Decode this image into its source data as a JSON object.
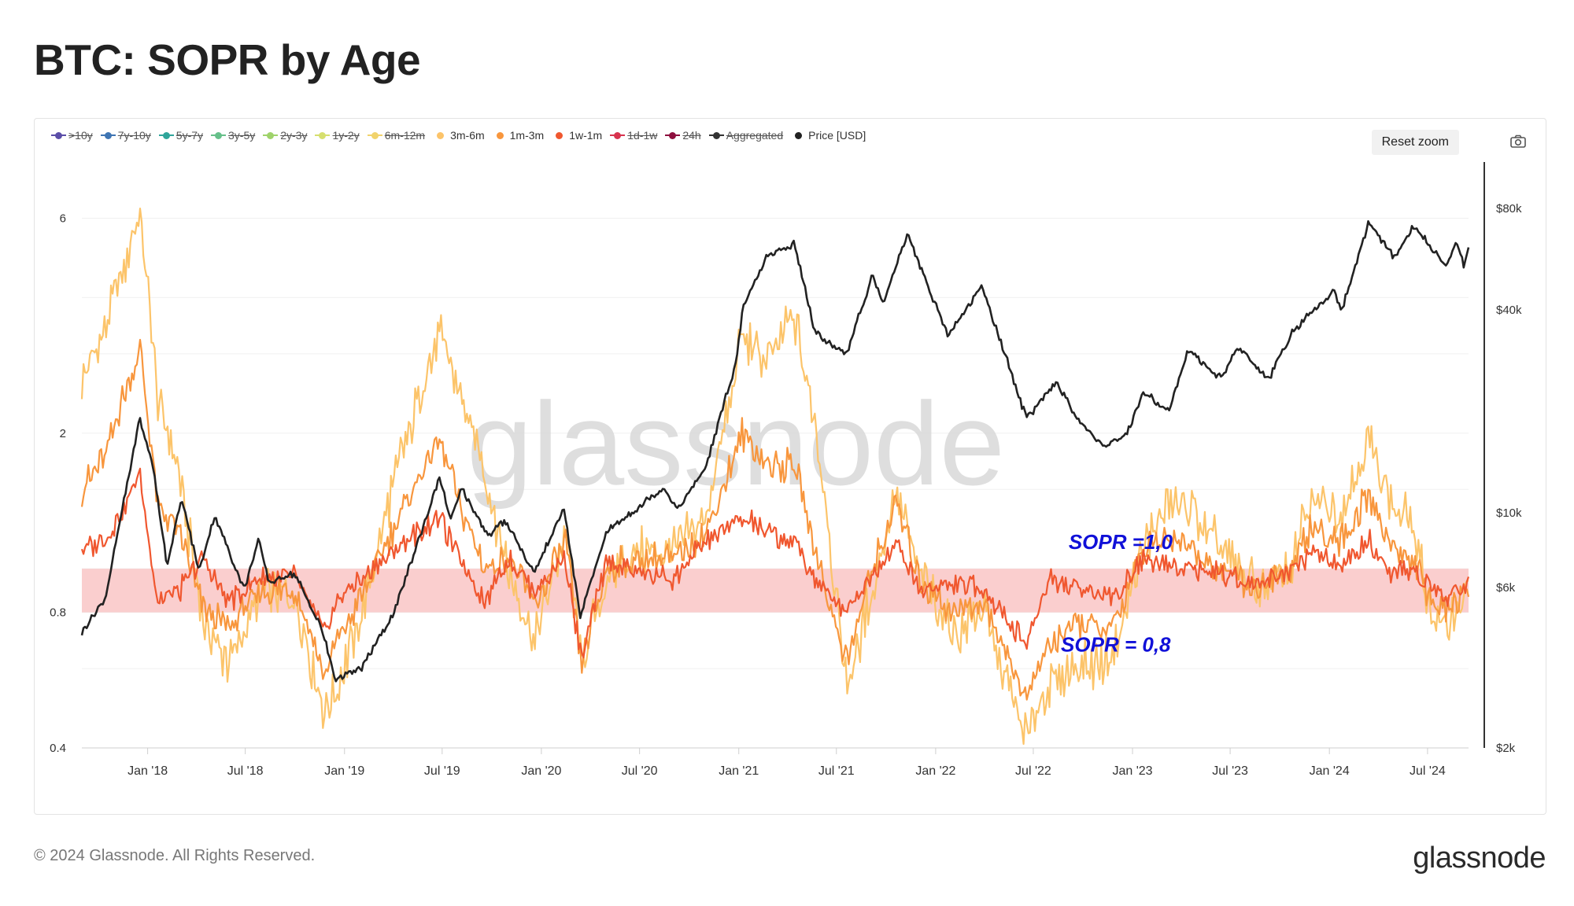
{
  "page": {
    "title": "BTC: SOPR by Age",
    "reset_zoom_label": "Reset zoom",
    "camera_icon": "camera-icon",
    "copyright": "© 2024 Glassnode. All Rights Reserved.",
    "logo_text": "glassnode",
    "watermark": "glassnode"
  },
  "legend": [
    {
      "label": ">10y",
      "color": "#5b4ea8",
      "hidden": true
    },
    {
      "label": "7y-10y",
      "color": "#3f75b3",
      "hidden": true
    },
    {
      "label": "5y-7y",
      "color": "#2fa59a",
      "hidden": true
    },
    {
      "label": "3y-5y",
      "color": "#66c08a",
      "hidden": true
    },
    {
      "label": "2y-3y",
      "color": "#9fd36b",
      "hidden": true
    },
    {
      "label": "1y-2y",
      "color": "#d6df6e",
      "hidden": true
    },
    {
      "label": "6m-12m",
      "color": "#f1d36c",
      "hidden": true
    },
    {
      "label": "3m-6m",
      "color": "#fcc46a",
      "hidden": false
    },
    {
      "label": "1m-3m",
      "color": "#f8963d",
      "hidden": false
    },
    {
      "label": "1w-1m",
      "color": "#f0572f",
      "hidden": false
    },
    {
      "label": "1d-1w",
      "color": "#d8334e",
      "hidden": true
    },
    {
      "label": "24h",
      "color": "#8e0f3e",
      "hidden": true
    },
    {
      "label": "Aggregated",
      "color": "#333333",
      "hidden": true
    },
    {
      "label": "Price [USD]",
      "color": "#222222",
      "hidden": false
    }
  ],
  "annotations": {
    "sopr_upper": "SOPR =1,0",
    "sopr_lower": "SOPR = 0,8",
    "annotation_color": "#1010d8",
    "band_color": "#f9c9c9"
  },
  "chart_data": {
    "type": "line",
    "title": "BTC: SOPR by Age",
    "x_tick_labels": [
      "Jan '18",
      "Jul '18",
      "Jan '19",
      "Jul '19",
      "Jan '20",
      "Jul '20",
      "Jan '21",
      "Jul '21",
      "Jan '22",
      "Jul '22",
      "Jan '23",
      "Jul '23",
      "Jan '24",
      "Jul '24"
    ],
    "x_range": [
      "2017-09-01",
      "2024-09-15"
    ],
    "y_left": {
      "scale": "log",
      "tick_labels": [
        "0.4",
        "0.8",
        "2",
        "6"
      ],
      "tick_values": [
        0.4,
        0.8,
        2,
        6
      ],
      "range": [
        0.4,
        8.0
      ]
    },
    "y_right": {
      "scale": "log",
      "tick_labels": [
        "$2k",
        "$6k",
        "$10k",
        "$40k",
        "$80k"
      ],
      "tick_values": [
        2000,
        6000,
        10000,
        40000,
        80000
      ],
      "range": [
        2000,
        110000
      ]
    },
    "band": {
      "from": 0.8,
      "to": 1.0
    },
    "series": [
      {
        "name": "3m-6m",
        "color": "#fcc46a",
        "axis": "left",
        "points": [
          [
            "2017-09-01",
            2.6
          ],
          [
            "2017-10-15",
            3.4
          ],
          [
            "2017-12-17",
            6.2
          ],
          [
            "2018-01-20",
            2.4
          ],
          [
            "2018-03-01",
            1.6
          ],
          [
            "2018-04-15",
            0.75
          ],
          [
            "2018-06-01",
            0.62
          ],
          [
            "2018-08-01",
            0.9
          ],
          [
            "2018-10-01",
            0.85
          ],
          [
            "2018-11-25",
            0.48
          ],
          [
            "2018-12-20",
            0.55
          ],
          [
            "2019-02-15",
            0.9
          ],
          [
            "2019-04-10",
            1.7
          ],
          [
            "2019-06-26",
            3.3
          ],
          [
            "2019-08-01",
            2.5
          ],
          [
            "2019-09-20",
            1.6
          ],
          [
            "2019-11-01",
            1.0
          ],
          [
            "2019-12-20",
            0.68
          ],
          [
            "2020-02-15",
            1.2
          ],
          [
            "2020-03-15",
            0.62
          ],
          [
            "2020-05-01",
            0.95
          ],
          [
            "2020-07-01",
            1.1
          ],
          [
            "2020-09-01",
            1.1
          ],
          [
            "2020-11-01",
            1.3
          ],
          [
            "2021-01-08",
            3.3
          ],
          [
            "2021-02-20",
            2.9
          ],
          [
            "2021-04-15",
            3.6
          ],
          [
            "2021-06-01",
            1.8
          ],
          [
            "2021-07-20",
            0.55
          ],
          [
            "2021-09-01",
            0.85
          ],
          [
            "2021-10-20",
            1.5
          ],
          [
            "2021-12-01",
            1.0
          ],
          [
            "2022-02-01",
            0.72
          ],
          [
            "2022-04-01",
            0.8
          ],
          [
            "2022-06-18",
            0.42
          ],
          [
            "2022-08-01",
            0.55
          ],
          [
            "2022-09-15",
            0.6
          ],
          [
            "2022-11-21",
            0.62
          ],
          [
            "2023-01-20",
            1.1
          ],
          [
            "2023-03-15",
            1.45
          ],
          [
            "2023-04-20",
            1.35
          ],
          [
            "2023-06-15",
            1.1
          ],
          [
            "2023-08-20",
            0.9
          ],
          [
            "2023-10-20",
            1.0
          ],
          [
            "2023-12-01",
            1.45
          ],
          [
            "2024-01-20",
            1.3
          ],
          [
            "2024-03-14",
            1.95
          ],
          [
            "2024-04-20",
            1.45
          ],
          [
            "2024-06-01",
            1.25
          ],
          [
            "2024-07-10",
            0.8
          ],
          [
            "2024-08-05",
            0.75
          ],
          [
            "2024-09-15",
            0.9
          ]
        ]
      },
      {
        "name": "1m-3m",
        "color": "#f8963d",
        "axis": "left",
        "points": [
          [
            "2017-09-01",
            1.5
          ],
          [
            "2017-10-15",
            1.8
          ],
          [
            "2017-12-17",
            3.1
          ],
          [
            "2018-01-20",
            1.4
          ],
          [
            "2018-03-01",
            1.2
          ],
          [
            "2018-04-15",
            0.8
          ],
          [
            "2018-06-01",
            0.75
          ],
          [
            "2018-08-01",
            0.9
          ],
          [
            "2018-10-01",
            0.9
          ],
          [
            "2018-11-25",
            0.58
          ],
          [
            "2018-12-20",
            0.7
          ],
          [
            "2019-02-15",
            0.92
          ],
          [
            "2019-04-10",
            1.3
          ],
          [
            "2019-06-26",
            1.95
          ],
          [
            "2019-08-01",
            1.4
          ],
          [
            "2019-09-20",
            1.0
          ],
          [
            "2019-11-01",
            1.05
          ],
          [
            "2019-12-20",
            0.82
          ],
          [
            "2020-02-15",
            1.15
          ],
          [
            "2020-03-15",
            0.6
          ],
          [
            "2020-05-01",
            1.0
          ],
          [
            "2020-07-01",
            1.05
          ],
          [
            "2020-09-01",
            1.05
          ],
          [
            "2020-11-01",
            1.2
          ],
          [
            "2021-01-08",
            2.0
          ],
          [
            "2021-02-20",
            1.7
          ],
          [
            "2021-04-15",
            1.7
          ],
          [
            "2021-06-01",
            1.0
          ],
          [
            "2021-07-20",
            0.62
          ],
          [
            "2021-09-01",
            0.95
          ],
          [
            "2021-10-20",
            1.4
          ],
          [
            "2021-12-01",
            0.95
          ],
          [
            "2022-02-01",
            0.8
          ],
          [
            "2022-04-01",
            0.85
          ],
          [
            "2022-06-18",
            0.52
          ],
          [
            "2022-08-01",
            0.68
          ],
          [
            "2022-09-15",
            0.75
          ],
          [
            "2022-11-21",
            0.72
          ],
          [
            "2023-01-20",
            1.08
          ],
          [
            "2023-03-15",
            1.2
          ],
          [
            "2023-04-20",
            1.1
          ],
          [
            "2023-06-15",
            1.0
          ],
          [
            "2023-08-20",
            0.9
          ],
          [
            "2023-10-20",
            0.98
          ],
          [
            "2023-12-01",
            1.25
          ],
          [
            "2024-01-20",
            1.15
          ],
          [
            "2024-03-14",
            1.45
          ],
          [
            "2024-04-20",
            1.15
          ],
          [
            "2024-06-01",
            1.05
          ],
          [
            "2024-07-10",
            0.85
          ],
          [
            "2024-08-05",
            0.8
          ],
          [
            "2024-09-15",
            0.9
          ]
        ]
      },
      {
        "name": "1w-1m",
        "color": "#f0572f",
        "axis": "left",
        "points": [
          [
            "2017-09-01",
            1.1
          ],
          [
            "2017-10-15",
            1.15
          ],
          [
            "2017-12-17",
            1.6
          ],
          [
            "2018-01-20",
            0.85
          ],
          [
            "2018-03-01",
            0.9
          ],
          [
            "2018-04-15",
            1.05
          ],
          [
            "2018-06-01",
            0.85
          ],
          [
            "2018-08-01",
            0.95
          ],
          [
            "2018-10-01",
            0.96
          ],
          [
            "2018-11-25",
            0.72
          ],
          [
            "2018-12-20",
            0.85
          ],
          [
            "2019-02-15",
            0.98
          ],
          [
            "2019-04-10",
            1.12
          ],
          [
            "2019-06-26",
            1.3
          ],
          [
            "2019-08-01",
            1.05
          ],
          [
            "2019-09-20",
            0.85
          ],
          [
            "2019-11-01",
            1.05
          ],
          [
            "2019-12-20",
            0.9
          ],
          [
            "2020-02-15",
            1.05
          ],
          [
            "2020-03-15",
            0.62
          ],
          [
            "2020-05-01",
            1.05
          ],
          [
            "2020-07-01",
            0.98
          ],
          [
            "2020-09-01",
            0.95
          ],
          [
            "2020-11-01",
            1.15
          ],
          [
            "2021-01-08",
            1.3
          ],
          [
            "2021-02-20",
            1.2
          ],
          [
            "2021-04-15",
            1.15
          ],
          [
            "2021-06-01",
            0.9
          ],
          [
            "2021-07-20",
            0.82
          ],
          [
            "2021-09-01",
            0.95
          ],
          [
            "2021-10-20",
            1.15
          ],
          [
            "2021-12-01",
            0.9
          ],
          [
            "2022-02-01",
            0.92
          ],
          [
            "2022-04-01",
            0.9
          ],
          [
            "2022-06-18",
            0.68
          ],
          [
            "2022-08-01",
            0.95
          ],
          [
            "2022-09-15",
            0.92
          ],
          [
            "2022-11-21",
            0.85
          ],
          [
            "2023-01-20",
            1.05
          ],
          [
            "2023-03-15",
            1.02
          ],
          [
            "2023-04-20",
            1.0
          ],
          [
            "2023-06-15",
            0.98
          ],
          [
            "2023-08-20",
            0.92
          ],
          [
            "2023-10-20",
            1.0
          ],
          [
            "2023-12-01",
            1.08
          ],
          [
            "2024-01-20",
            1.0
          ],
          [
            "2024-03-14",
            1.15
          ],
          [
            "2024-04-20",
            0.95
          ],
          [
            "2024-06-01",
            1.0
          ],
          [
            "2024-07-10",
            0.9
          ],
          [
            "2024-08-05",
            0.85
          ],
          [
            "2024-09-15",
            0.95
          ]
        ]
      },
      {
        "name": "Price [USD]",
        "color": "#222222",
        "axis": "right",
        "points": [
          [
            "2017-09-01",
            4400
          ],
          [
            "2017-10-15",
            5600
          ],
          [
            "2017-12-17",
            19000
          ],
          [
            "2018-01-10",
            14000
          ],
          [
            "2018-02-06",
            7000
          ],
          [
            "2018-03-05",
            11000
          ],
          [
            "2018-04-06",
            6700
          ],
          [
            "2018-05-05",
            9800
          ],
          [
            "2018-06-29",
            5900
          ],
          [
            "2018-07-25",
            8300
          ],
          [
            "2018-08-14",
            6200
          ],
          [
            "2018-10-01",
            6600
          ],
          [
            "2018-11-20",
            4500
          ],
          [
            "2018-12-15",
            3200
          ],
          [
            "2019-02-01",
            3450
          ],
          [
            "2019-04-02",
            5000
          ],
          [
            "2019-05-15",
            8000
          ],
          [
            "2019-06-26",
            12800
          ],
          [
            "2019-07-17",
            9500
          ],
          [
            "2019-08-06",
            11800
          ],
          [
            "2019-09-25",
            8500
          ],
          [
            "2019-10-26",
            9500
          ],
          [
            "2019-12-18",
            6600
          ],
          [
            "2020-02-12",
            10300
          ],
          [
            "2020-03-13",
            4900
          ],
          [
            "2020-05-01",
            8800
          ],
          [
            "2020-06-01",
            9600
          ],
          [
            "2020-08-15",
            11900
          ],
          [
            "2020-09-10",
            10200
          ],
          [
            "2020-11-01",
            13700
          ],
          [
            "2020-12-27",
            28000
          ],
          [
            "2021-01-08",
            40000
          ],
          [
            "2021-02-20",
            57000
          ],
          [
            "2021-04-14",
            63000
          ],
          [
            "2021-05-23",
            34000
          ],
          [
            "2021-07-20",
            29800
          ],
          [
            "2021-09-06",
            51000
          ],
          [
            "2021-09-25",
            42000
          ],
          [
            "2021-11-10",
            67500
          ],
          [
            "2021-12-20",
            46000
          ],
          [
            "2022-01-24",
            33500
          ],
          [
            "2022-03-28",
            47000
          ],
          [
            "2022-05-12",
            28800
          ],
          [
            "2022-06-18",
            19000
          ],
          [
            "2022-08-14",
            24400
          ],
          [
            "2022-09-20",
            19000
          ],
          [
            "2022-11-09",
            15800
          ],
          [
            "2022-12-20",
            16800
          ],
          [
            "2023-01-20",
            22800
          ],
          [
            "2023-03-10",
            20200
          ],
          [
            "2023-04-14",
            30300
          ],
          [
            "2023-06-15",
            25000
          ],
          [
            "2023-07-14",
            31200
          ],
          [
            "2023-09-11",
            25000
          ],
          [
            "2023-10-24",
            34500
          ],
          [
            "2024-01-11",
            46000
          ],
          [
            "2024-01-23",
            39500
          ],
          [
            "2024-03-14",
            73000
          ],
          [
            "2024-05-01",
            57000
          ],
          [
            "2024-06-06",
            71000
          ],
          [
            "2024-08-05",
            54000
          ],
          [
            "2024-08-24",
            64000
          ],
          [
            "2024-09-06",
            53900
          ],
          [
            "2024-09-15",
            60500
          ]
        ]
      }
    ]
  }
}
